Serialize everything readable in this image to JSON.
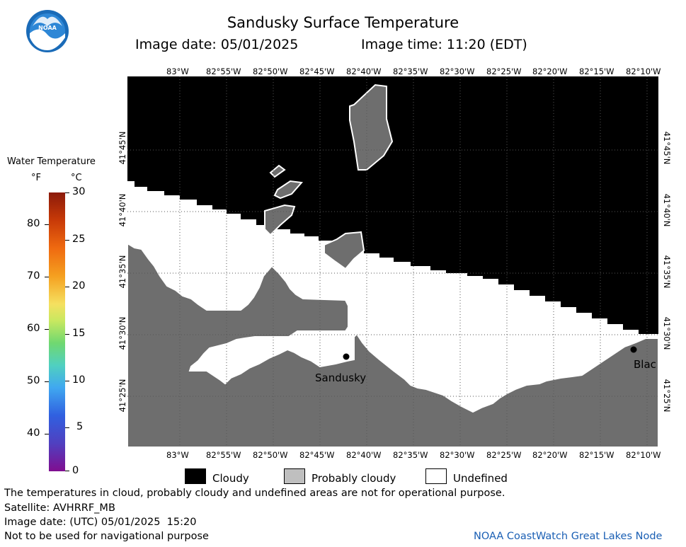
{
  "header": {
    "title": "Sandusky Surface Temperature",
    "image_date": "Image date: 05/01/2025",
    "image_time": "Image time: 11:20 (EDT)"
  },
  "logo": {
    "text": "NOAA"
  },
  "colorbar": {
    "title": "Water Temperature",
    "unit_f": "°F",
    "unit_c": "°C",
    "fahrenheit_ticks": [
      "80",
      "70",
      "60",
      "50",
      "40"
    ],
    "celsius_ticks": [
      "30",
      "25",
      "20",
      "15",
      "10",
      "5",
      "0"
    ]
  },
  "map": {
    "lon_labels": [
      "83°W",
      "82°55'W",
      "82°50'W",
      "82°45'W",
      "82°40'W",
      "82°35'W",
      "82°30'W",
      "82°25'W",
      "82°20'W",
      "82°15'W",
      "82°10'W"
    ],
    "lat_labels": [
      "41°45'N",
      "41°40'N",
      "41°35'N",
      "41°30'N",
      "41°25'N"
    ],
    "places": {
      "sandusky": "Sandusky",
      "blac": "Blac"
    },
    "colors": {
      "cloudy": "#000000",
      "probably_cloudy": "#6e6e6e",
      "undefined": "#ffffff"
    }
  },
  "legend": {
    "cloudy": "Cloudy",
    "probably_cloudy": "Probably cloudy",
    "undefined": "Undefined"
  },
  "footer": {
    "disclaimer": "The temperatures in cloud, probably cloudy and undefined areas are not for operational purpose.",
    "satellite": "Satellite: AVHRRF_MB",
    "utc_date": "Image date: (UTC) 05/01/2025  15:20",
    "nav_warning": "Not to be used for navigational purpose",
    "credit": "NOAA CoastWatch Great Lakes Node"
  }
}
